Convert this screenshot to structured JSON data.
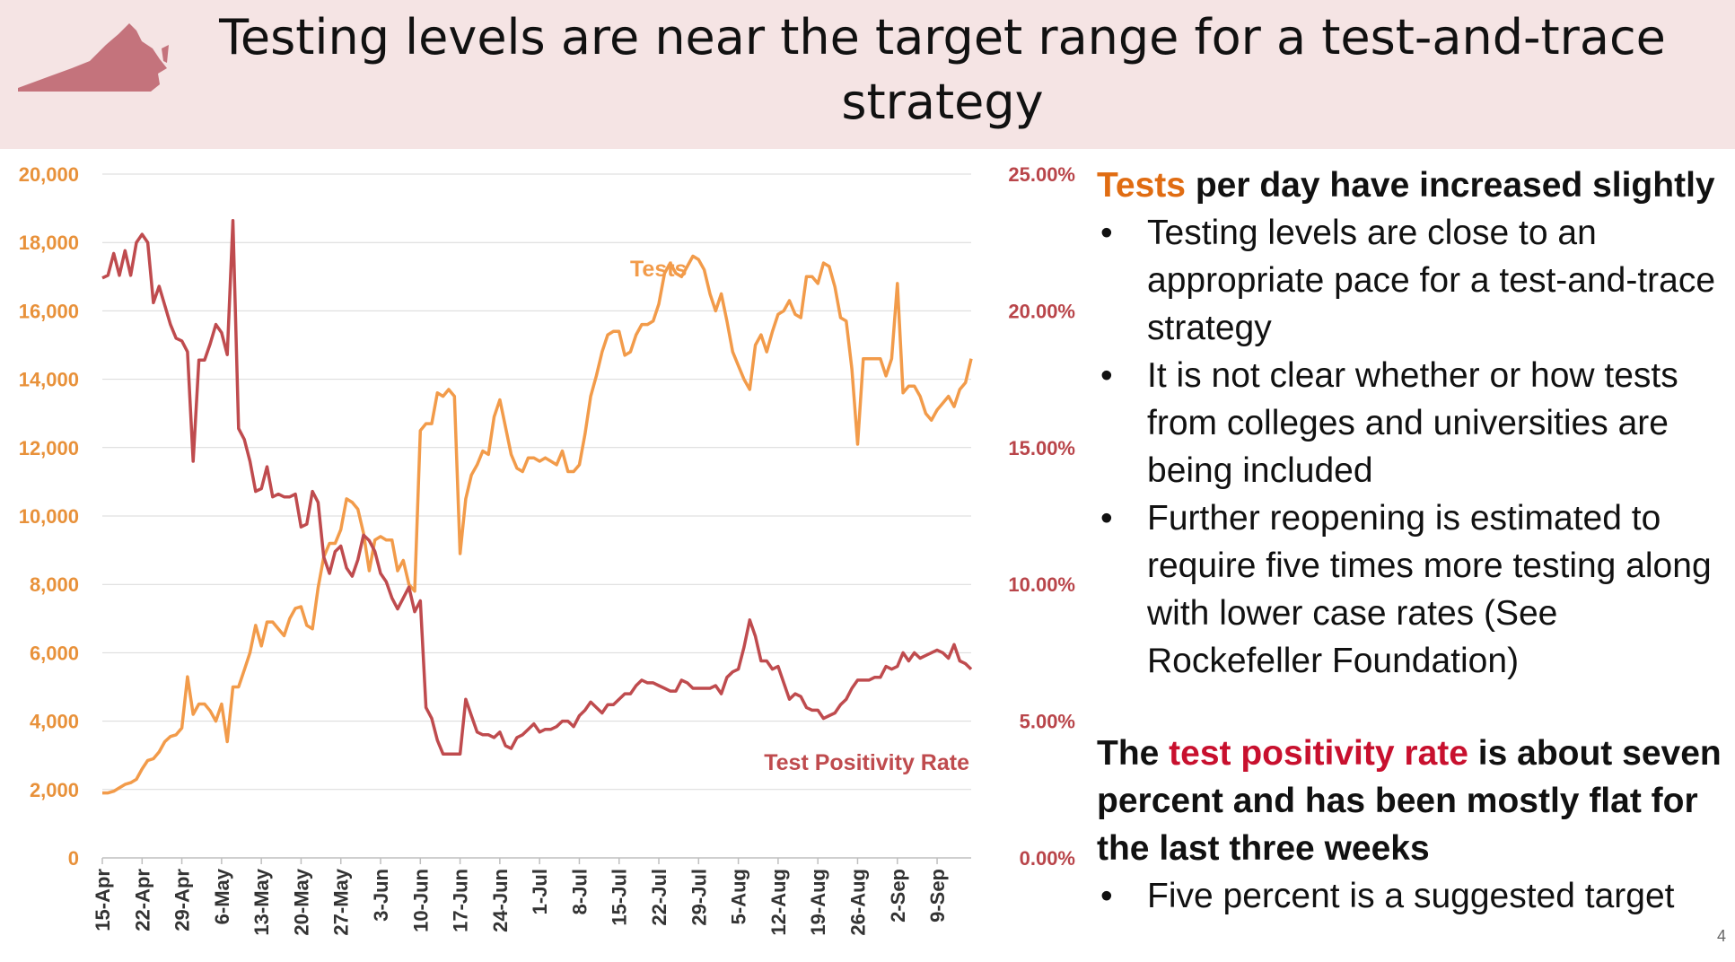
{
  "header": {
    "title": "Testing levels are near the target range for a test-and-trace strategy",
    "logo_icon": "virginia-state-shape-icon"
  },
  "colors": {
    "tests": "#f29b4a",
    "positivity": "#bf4b4e",
    "header_bg": "#f5e4e4"
  },
  "chart_data": {
    "type": "line",
    "x_tick_labels": [
      "15-Apr",
      "22-Apr",
      "29-Apr",
      "6-May",
      "13-May",
      "20-May",
      "27-May",
      "3-Jun",
      "10-Jun",
      "17-Jun",
      "24-Jun",
      "1-Jul",
      "8-Jul",
      "15-Jul",
      "22-Jul",
      "29-Jul",
      "5-Aug",
      "12-Aug",
      "19-Aug",
      "26-Aug",
      "2-Sep",
      "9-Sep"
    ],
    "y_left": {
      "ticks": [
        "0",
        "2,000",
        "4,000",
        "6,000",
        "8,000",
        "10,000",
        "12,000",
        "14,000",
        "16,000",
        "18,000",
        "20,000"
      ],
      "range": [
        0,
        20000
      ]
    },
    "y_right": {
      "ticks": [
        "0.00%",
        "5.00%",
        "10.00%",
        "15.00%",
        "20.00%",
        "25.00%"
      ],
      "range": [
        0,
        25
      ]
    },
    "grid": "horizontal",
    "series": [
      {
        "name": "Tests",
        "axis": "left",
        "values": [
          1900,
          1900,
          1950,
          2050,
          2150,
          2200,
          2300,
          2600,
          2850,
          2900,
          3100,
          3400,
          3550,
          3600,
          3800,
          5300,
          4200,
          4500,
          4500,
          4300,
          4000,
          4500,
          3400,
          5000,
          5000,
          5500,
          6000,
          6800,
          6200,
          6900,
          6900,
          6700,
          6500,
          7000,
          7300,
          7350,
          6800,
          6700,
          7900,
          8800,
          9200,
          9200,
          9600,
          10500,
          10400,
          10200,
          9500,
          8400,
          9300,
          9400,
          9300,
          9300,
          8400,
          8700,
          8000,
          7800,
          12500,
          12700,
          12700,
          13600,
          13500,
          13700,
          13500,
          8900,
          10500,
          11200,
          11500,
          11900,
          11800,
          12900,
          13400,
          12600,
          11800,
          11400,
          11300,
          11700,
          11700,
          11600,
          11700,
          11600,
          11500,
          11900,
          11300,
          11300,
          11500,
          12400,
          13500,
          14100,
          14800,
          15300,
          15400,
          15400,
          14700,
          14800,
          15300,
          15600,
          15600,
          15700,
          16200,
          17100,
          17400,
          17100,
          17000,
          17300,
          17600,
          17500,
          17200,
          16500,
          16000,
          16500,
          15700,
          14800,
          14400,
          14000,
          13700,
          15000,
          15300,
          14800,
          15400,
          15900,
          16000,
          16300,
          15900,
          15800,
          17000,
          17000,
          16800,
          17400,
          17300,
          16700,
          15800,
          15700,
          14300,
          12100,
          14600,
          14600,
          14600,
          14600,
          14100,
          14600,
          16800,
          13600,
          13800,
          13800,
          13500,
          13000,
          12800,
          13100,
          13300,
          13500,
          13200,
          13700,
          13900,
          14600
        ]
      },
      {
        "name": "Test Positivity Rate",
        "axis": "right",
        "values": [
          21.2,
          21.3,
          22.1,
          21.3,
          22.2,
          21.3,
          22.5,
          22.8,
          22.5,
          20.3,
          20.9,
          20.2,
          19.5,
          19.0,
          18.9,
          18.5,
          14.5,
          18.2,
          18.2,
          18.8,
          19.5,
          19.2,
          18.4,
          23.3,
          15.7,
          15.3,
          14.5,
          13.4,
          13.5,
          14.3,
          13.2,
          13.3,
          13.2,
          13.2,
          13.3,
          12.1,
          12.2,
          13.4,
          13.0,
          11.0,
          10.4,
          11.2,
          11.4,
          10.6,
          10.3,
          10.9,
          11.8,
          11.6,
          11.2,
          10.4,
          10.1,
          9.5,
          9.1,
          9.5,
          9.9,
          9.0,
          9.4,
          5.5,
          5.1,
          4.3,
          3.8,
          3.8,
          3.8,
          3.8,
          5.8,
          5.2,
          4.6,
          4.5,
          4.5,
          4.4,
          4.6,
          4.1,
          4.0,
          4.4,
          4.5,
          4.7,
          4.9,
          4.6,
          4.7,
          4.7,
          4.8,
          5.0,
          5.0,
          4.8,
          5.2,
          5.4,
          5.7,
          5.5,
          5.3,
          5.6,
          5.6,
          5.8,
          6.0,
          6.0,
          6.3,
          6.5,
          6.4,
          6.4,
          6.3,
          6.2,
          6.1,
          6.1,
          6.5,
          6.4,
          6.2,
          6.2,
          6.2,
          6.2,
          6.3,
          6.0,
          6.6,
          6.8,
          6.9,
          7.7,
          8.7,
          8.1,
          7.2,
          7.2,
          6.9,
          7.0,
          6.4,
          5.8,
          6.0,
          5.9,
          5.5,
          5.4,
          5.4,
          5.1,
          5.2,
          5.3,
          5.6,
          5.8,
          6.2,
          6.5,
          6.5,
          6.5,
          6.6,
          6.6,
          7.0,
          6.9,
          7.0,
          7.5,
          7.2,
          7.5,
          7.3,
          7.4,
          7.5,
          7.6,
          7.5,
          7.3,
          7.8,
          7.2,
          7.1,
          6.9
        ]
      }
    ],
    "annotations": [
      "Tests",
      "Test Positivity Rate"
    ]
  },
  "panel": {
    "section1": {
      "heading_highlight": "Tests",
      "heading_rest": " per day have increased slightly",
      "bullets": [
        "Testing levels are close to an appropriate pace for a test-and-trace strategy",
        "It is not clear whether or how tests from colleges and universities are being included",
        "Further reopening is estimated to require five times more testing along with lower case rates (See Rockefeller Foundation)"
      ]
    },
    "section2": {
      "heading_pre": "The ",
      "heading_highlight": "test positivity rate",
      "heading_rest": " is about seven percent and has been mostly flat for the last three weeks",
      "bullets": [
        "Five percent is a suggested target"
      ]
    }
  },
  "page_number": "4"
}
